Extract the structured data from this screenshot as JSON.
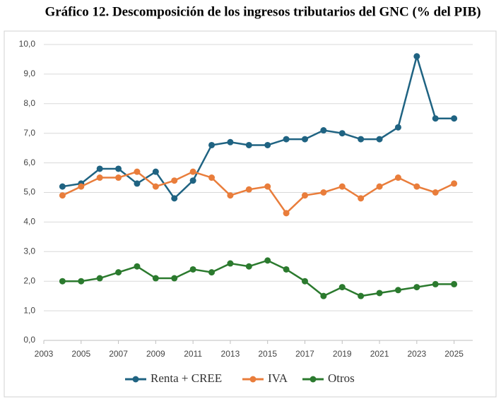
{
  "chart_data": {
    "type": "line",
    "title": "Gráfico 12. Descomposición de los ingresos tributarios del GNC (% del PIB)",
    "x": [
      2004,
      2005,
      2006,
      2007,
      2008,
      2009,
      2010,
      2011,
      2012,
      2013,
      2014,
      2015,
      2016,
      2017,
      2018,
      2019,
      2020,
      2021,
      2022,
      2023,
      2024,
      2025
    ],
    "series": [
      {
        "name": "Renta + CREE",
        "color": "#1f6382",
        "values": [
          5.2,
          5.3,
          5.8,
          5.8,
          5.3,
          5.7,
          4.8,
          5.4,
          6.6,
          6.7,
          6.6,
          6.6,
          6.8,
          6.8,
          7.1,
          7.0,
          6.8,
          6.8,
          7.2,
          9.6,
          7.5,
          7.5
        ]
      },
      {
        "name": "IVA",
        "color": "#e97d3b",
        "values": [
          4.9,
          5.2,
          5.5,
          5.5,
          5.7,
          5.2,
          5.4,
          5.7,
          5.5,
          4.9,
          5.1,
          5.2,
          4.3,
          4.9,
          5.0,
          5.2,
          4.8,
          5.2,
          5.5,
          5.2,
          5.0,
          5.3
        ]
      },
      {
        "name": "Otros",
        "color": "#2b7a2e",
        "values": [
          2.0,
          2.0,
          2.1,
          2.3,
          2.5,
          2.1,
          2.1,
          2.4,
          2.3,
          2.6,
          2.5,
          2.7,
          2.4,
          2.0,
          1.5,
          1.8,
          1.5,
          1.6,
          1.7,
          1.8,
          1.9,
          1.9
        ]
      }
    ],
    "xlim": [
      2003,
      2026
    ],
    "xticks": [
      2003,
      2005,
      2007,
      2009,
      2011,
      2013,
      2015,
      2017,
      2019,
      2021,
      2023,
      2025
    ],
    "ylim": [
      0,
      10
    ],
    "yticks": [
      {
        "value": 0,
        "label": "0,0"
      },
      {
        "value": 1,
        "label": "1,0"
      },
      {
        "value": 2,
        "label": "2,0"
      },
      {
        "value": 3,
        "label": "3,0"
      },
      {
        "value": 4,
        "label": "4,0"
      },
      {
        "value": 5,
        "label": "5,0"
      },
      {
        "value": 6,
        "label": "6,0"
      },
      {
        "value": 7,
        "label": "7,0"
      },
      {
        "value": 8,
        "label": "8,0"
      },
      {
        "value": 9,
        "label": "9,0"
      },
      {
        "value": 10,
        "label": "10,0"
      }
    ],
    "grid": true,
    "legend": "bottom"
  }
}
